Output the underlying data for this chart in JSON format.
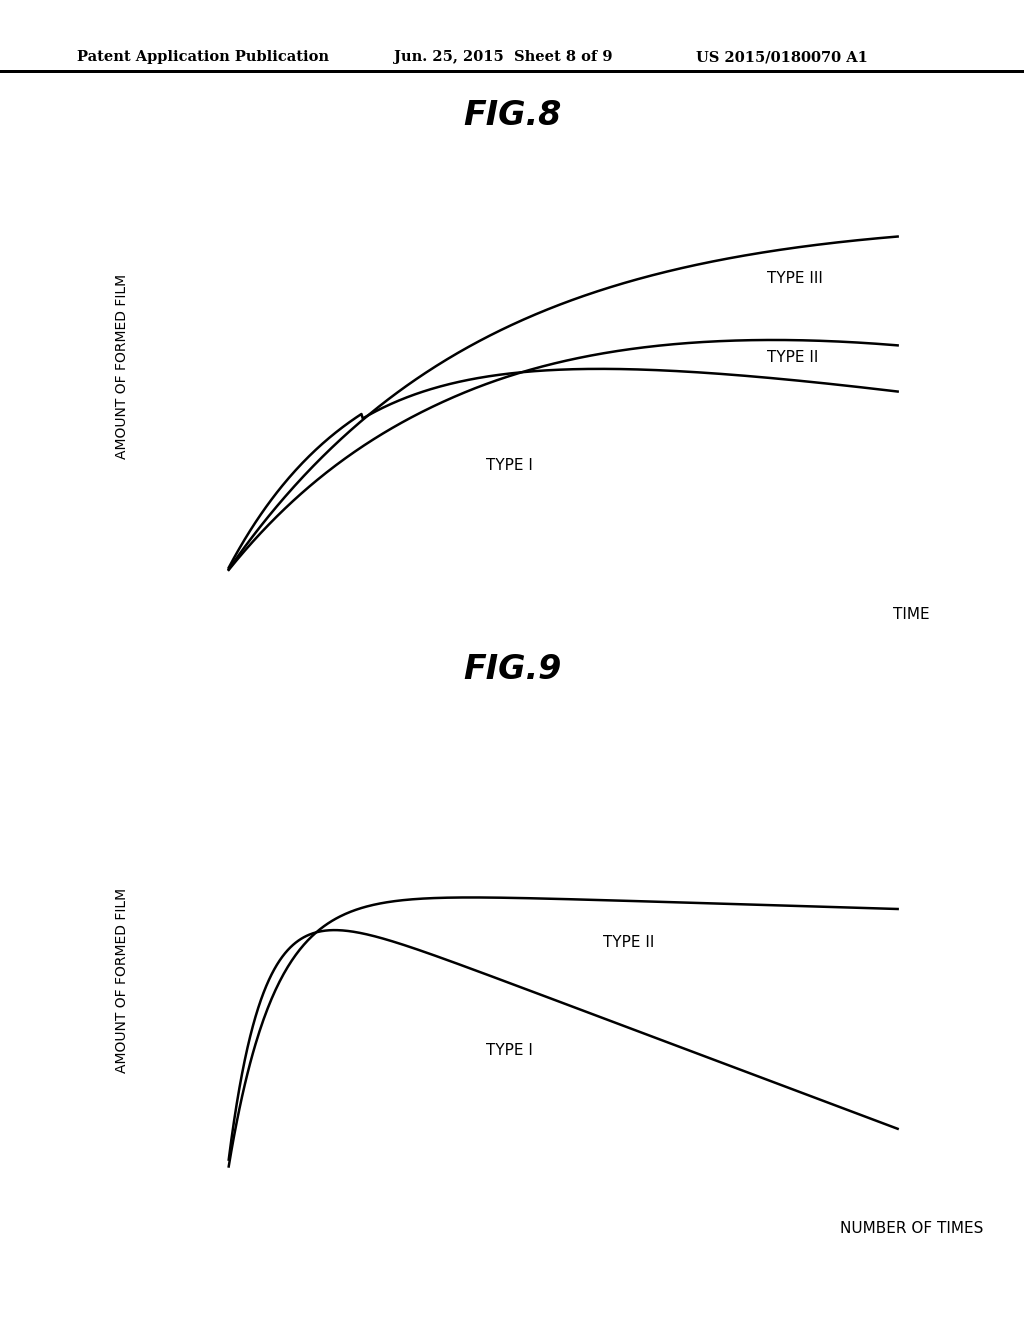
{
  "header_left": "Patent Application Publication",
  "header_center": "Jun. 25, 2015  Sheet 8 of 9",
  "header_right": "US 2015/0180070 A1",
  "fig8_title": "FIG.8",
  "fig9_title": "FIG.9",
  "fig8_ylabel": "AMOUNT OF FORMED FILM",
  "fig8_xlabel": "TIME",
  "fig9_ylabel": "AMOUNT OF FORMED FILM",
  "fig9_xlabel": "NUMBER OF TIMES",
  "fig8_type1_label": "TYPE I",
  "fig8_type2_label": "TYPE II",
  "fig8_type3_label": "TYPE III",
  "fig9_type1_label": "TYPE I",
  "fig9_type2_label": "TYPE II",
  "background_color": "#ffffff",
  "line_color": "#000000",
  "text_color": "#000000",
  "header_fontsize": 10.5,
  "fig_title_fontsize": 24,
  "axis_label_fontsize": 10,
  "curve_label_fontsize": 11,
  "line_width": 1.8
}
